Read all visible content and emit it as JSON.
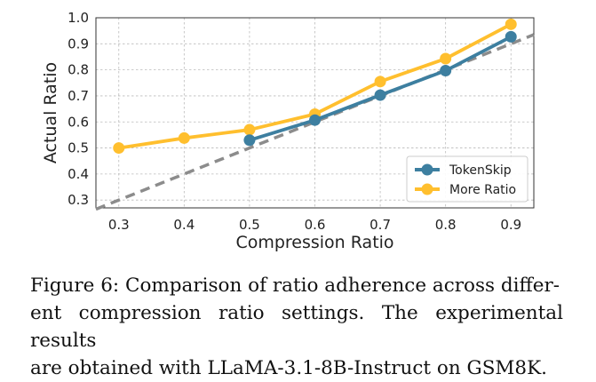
{
  "chart_data": {
    "type": "line",
    "title": "",
    "xlabel": "Compression Ratio",
    "ylabel": "Actual Ratio",
    "xlim": [
      0.265,
      0.935
    ],
    "ylim": [
      0.27,
      1.0
    ],
    "x_ticks": [
      "0.3",
      "0.4",
      "0.5",
      "0.6",
      "0.7",
      "0.8",
      "0.9"
    ],
    "x_tick_values": [
      0.3,
      0.4,
      0.5,
      0.6,
      0.7,
      0.8,
      0.9
    ],
    "y_ticks": [
      "0.3",
      "0.4",
      "0.5",
      "0.6",
      "0.7",
      "0.8",
      "0.9",
      "1.0"
    ],
    "y_tick_values": [
      0.3,
      0.4,
      0.5,
      0.6,
      0.7,
      0.8,
      0.9,
      1.0
    ],
    "grid": true,
    "legend_position": "lower-right",
    "reference_line": {
      "name": "y = x",
      "style": "dashed",
      "color": "#8c8c8c",
      "x": [
        0.265,
        0.935
      ],
      "y": [
        0.265,
        0.935
      ]
    },
    "series": [
      {
        "name": "TokenSkip",
        "color": "#3d7fa0",
        "x": [
          0.5,
          0.6,
          0.7,
          0.8,
          0.9
        ],
        "values": [
          0.53,
          0.607,
          0.703,
          0.797,
          0.927
        ]
      },
      {
        "name": "More Ratio",
        "color": "#ffbf2e",
        "x": [
          0.3,
          0.4,
          0.5,
          0.6,
          0.7,
          0.8,
          0.9
        ],
        "values": [
          0.5,
          0.538,
          0.57,
          0.63,
          0.755,
          0.843,
          0.975
        ]
      }
    ]
  },
  "caption": {
    "lines": [
      "Figure 6: Comparison of ratio adherence across differ-",
      "ent compression ratio settings. The experimental results",
      "are obtained with LLaMA-3.1-8B-Instruct on GSM8K."
    ]
  }
}
